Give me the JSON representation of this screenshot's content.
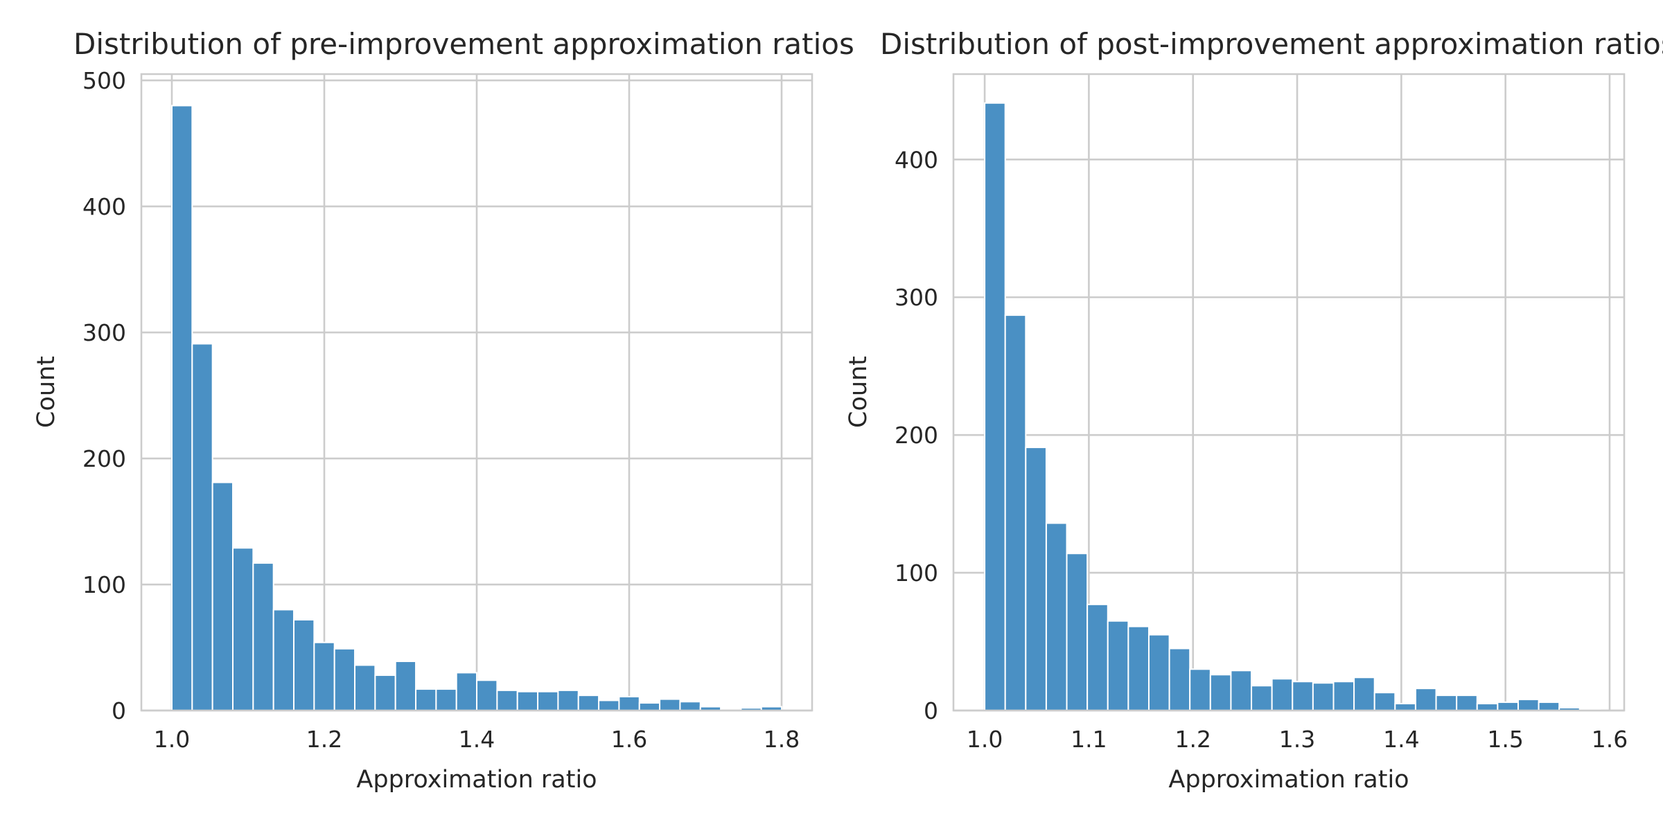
{
  "chart_data": [
    {
      "type": "bar",
      "title": "Distribution of pre-improvement approximation ratios",
      "xlabel": "Approximation ratio",
      "ylabel": "Count",
      "xlim": [
        0.96,
        1.84
      ],
      "ylim": [
        0,
        505
      ],
      "xticks": [
        1.0,
        1.2,
        1.4,
        1.6,
        1.8
      ],
      "xtick_labels": [
        "1.0",
        "1.2",
        "1.4",
        "1.6",
        "1.8"
      ],
      "yticks": [
        0,
        100,
        200,
        300,
        400,
        500
      ],
      "ytick_labels": [
        "0",
        "100",
        "200",
        "300",
        "400",
        "500"
      ],
      "grid": true,
      "color": "#4a90c4",
      "bin_start": 1.0,
      "bin_width": 0.02667,
      "values": [
        480,
        291,
        181,
        129,
        117,
        80,
        72,
        54,
        49,
        36,
        28,
        39,
        17,
        17,
        30,
        24,
        16,
        15,
        15,
        16,
        12,
        8,
        11,
        6,
        9,
        7,
        3,
        0,
        2,
        3
      ]
    },
    {
      "type": "bar",
      "title": "Distribution of post-improvement approximation ratios",
      "xlabel": "Approximation ratio",
      "ylabel": "Count",
      "xlim": [
        0.97,
        1.614
      ],
      "ylim": [
        0,
        462
      ],
      "xticks": [
        1.0,
        1.1,
        1.2,
        1.3,
        1.4,
        1.5,
        1.6
      ],
      "xtick_labels": [
        "1.0",
        "1.1",
        "1.2",
        "1.3",
        "1.4",
        "1.5",
        "1.6"
      ],
      "yticks": [
        0,
        100,
        200,
        300,
        400
      ],
      "ytick_labels": [
        "0",
        "100",
        "200",
        "300",
        "400"
      ],
      "grid": true,
      "color": "#4a90c4",
      "bin_start": 1.0,
      "bin_width": 0.0197,
      "values": [
        441,
        287,
        191,
        136,
        114,
        77,
        65,
        61,
        55,
        45,
        30,
        26,
        29,
        18,
        23,
        21,
        20,
        21,
        24,
        13,
        5,
        16,
        11,
        11,
        5,
        6,
        8,
        6,
        2,
        1
      ]
    }
  ]
}
